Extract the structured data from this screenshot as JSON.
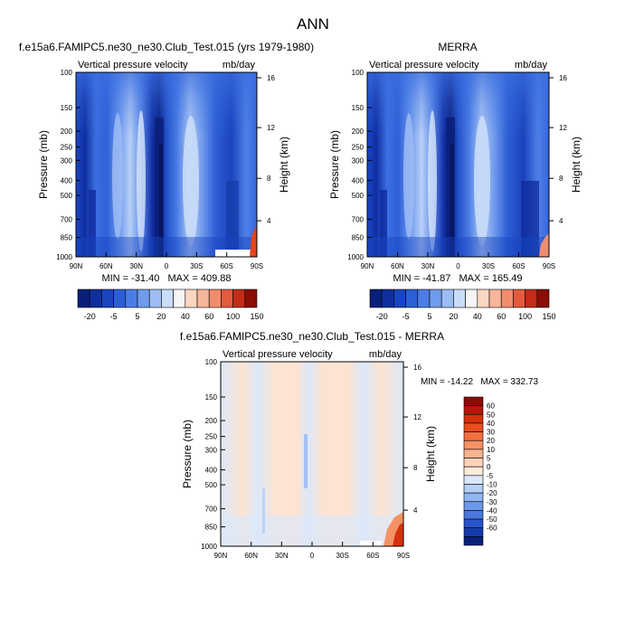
{
  "figure": {
    "title": "ANN"
  },
  "colors": {
    "dark_blue": "#0a1f7a",
    "mid_blue": "#2f6bde",
    "light_blue": "#5a8ff0",
    "pale_blue": "#b7d0f7",
    "ice_blue": "#dbe8fa",
    "pale_peach": "#fde4d2",
    "red": "#e4431c",
    "dark_red": "#8b0d05"
  },
  "chart_data": [
    {
      "id": "model",
      "type": "heatmap",
      "panel_title": "f.e15a6.FAMIPC5.ne30_ne30.Club_Test.015 (yrs 1979-1980)",
      "left_label": "Vertical pressure velocity",
      "right_label": "mb/day",
      "ylabel": "Pressure (mb)",
      "y2label": "Height (km)",
      "x_ticks": [
        "90N",
        "60N",
        "30N",
        "0",
        "30S",
        "60S",
        "90S"
      ],
      "y_ticks": [
        "100",
        "150",
        "200",
        "250",
        "300",
        "400",
        "500",
        "700",
        "850",
        "1000"
      ],
      "y2_ticks": [
        "16",
        "12",
        "8",
        "4"
      ],
      "stats": "MIN = -31.40   MAX = 409.88",
      "colorbar_labels": [
        "-20",
        "-5",
        "5",
        "20",
        "40",
        "60",
        "100",
        "150"
      ],
      "colorbar_colors": [
        "#0a1f7a",
        "#102f9e",
        "#1845c0",
        "#2a5fd8",
        "#4a7de6",
        "#6f9bee",
        "#9dbcf4",
        "#c9dcf8",
        "#f5f5f5",
        "#fbd7c1",
        "#f7b69a",
        "#f28c6d",
        "#e45a3c",
        "#c42b19",
        "#8b0d05"
      ]
    },
    {
      "id": "obs",
      "type": "heatmap",
      "panel_title": "MERRA",
      "left_label": "Vertical pressure velocity",
      "right_label": "mb/day",
      "ylabel": "Pressure (mb)",
      "y2label": "Height (km)",
      "x_ticks": [
        "90N",
        "60N",
        "30N",
        "0",
        "30S",
        "60S",
        "90S"
      ],
      "y_ticks": [
        "100",
        "150",
        "200",
        "250",
        "300",
        "400",
        "500",
        "700",
        "850",
        "1000"
      ],
      "y2_ticks": [
        "16",
        "12",
        "8",
        "4"
      ],
      "stats": "MIN = -41.87   MAX = 165.49",
      "colorbar_labels": [
        "-20",
        "-5",
        "5",
        "20",
        "40",
        "60",
        "100",
        "150"
      ],
      "colorbar_colors": [
        "#0a1f7a",
        "#102f9e",
        "#1845c0",
        "#2a5fd8",
        "#4a7de6",
        "#6f9bee",
        "#9dbcf4",
        "#c9dcf8",
        "#f5f5f5",
        "#fbd7c1",
        "#f7b69a",
        "#f28c6d",
        "#e45a3c",
        "#c42b19",
        "#8b0d05"
      ]
    },
    {
      "id": "diff",
      "type": "heatmap",
      "panel_title": "f.e15a6.FAMIPC5.ne30_ne30.Club_Test.015 - MERRA",
      "left_label": "Vertical pressure velocity",
      "right_label": "mb/day",
      "ylabel": "Pressure (mb)",
      "y2label": "Height (km)",
      "x_ticks": [
        "90N",
        "60N",
        "30N",
        "0",
        "30S",
        "60S",
        "90S"
      ],
      "y_ticks": [
        "100",
        "150",
        "200",
        "250",
        "300",
        "400",
        "500",
        "700",
        "850",
        "1000"
      ],
      "y2_ticks": [
        "16",
        "12",
        "8",
        "4"
      ],
      "stats": "MIN = -14.22   MAX = 332.73",
      "colorbar_labels": [
        "60",
        "50",
        "40",
        "30",
        "20",
        "10",
        "5",
        "0",
        "-5",
        "-10",
        "-20",
        "-30",
        "-40",
        "-50",
        "-60"
      ],
      "colorbar_colors": [
        "#8b0d05",
        "#b2190a",
        "#d6300f",
        "#e84e22",
        "#f07040",
        "#f59266",
        "#f9b38e",
        "#fcd3b8",
        "#fdebdc",
        "#dbe8fa",
        "#b7d0f7",
        "#92b6f2",
        "#6c98ea",
        "#4a78dc",
        "#2a55c8",
        "#163aa8",
        "#0a1f7a"
      ]
    }
  ]
}
